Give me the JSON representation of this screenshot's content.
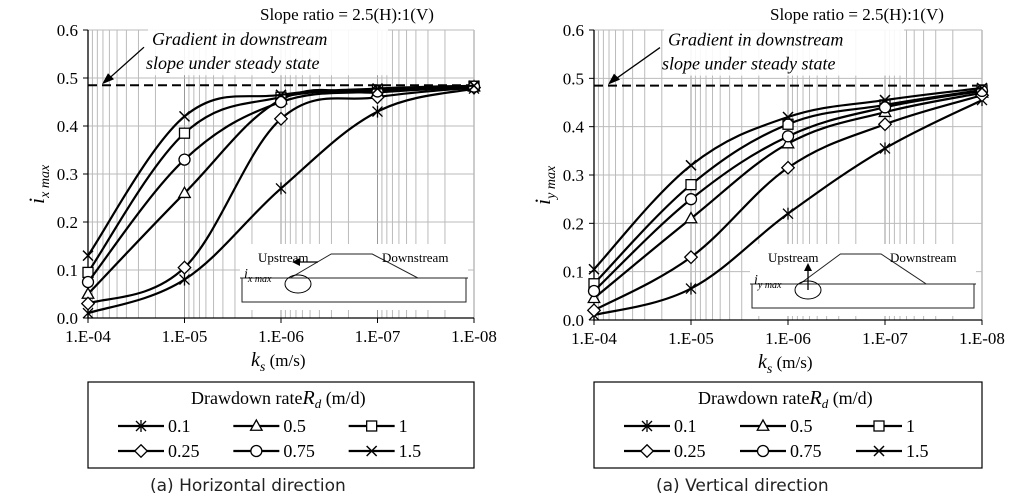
{
  "chart_data": [
    {
      "type": "line",
      "title": "Slope ratio = 2.5(H):1(V)",
      "caption": "(a) Horizontal direction",
      "ylabel_main": "i",
      "ylabel_sub": "x max",
      "xlabel_main": "k",
      "xlabel_sub": "s",
      "xlabel_unit": " (m/s)",
      "x_ticks": [
        "1.E-04",
        "1.E-05",
        "1.E-06",
        "1.E-07",
        "1.E-08"
      ],
      "x_log_exponents": [
        -4,
        -5,
        -6,
        -7,
        -8
      ],
      "y_ticks": [
        "0.0",
        "0.1",
        "0.2",
        "0.3",
        "0.4",
        "0.5",
        "0.6"
      ],
      "ylim": [
        0,
        0.6
      ],
      "x_scale": "log (decreasing)",
      "grid": "log-minor vertical",
      "steady_line": {
        "y": 0.485,
        "label_line1": "Gradient in downstream",
        "label_line2": "slope under steady state"
      },
      "inset": {
        "upstream": "Upstream",
        "downstream": "Downstream",
        "arrow_label_main": "i",
        "arrow_label_sub": "x max",
        "arrow_dir": "left"
      },
      "legend": {
        "title_main": "Drawdown rate",
        "title_var": "R",
        "title_sub": "d",
        "title_unit": " (m/d)",
        "entries": [
          "0.1",
          "0.5",
          "1",
          "0.25",
          "0.75",
          "1.5"
        ]
      },
      "series": [
        {
          "name": "0.1",
          "marker": "asterisk",
          "x": [
            "1.E-04",
            "1.E-05",
            "1.E-06",
            "1.E-07",
            "1.E-08"
          ],
          "y": [
            0.01,
            0.08,
            0.27,
            0.43,
            0.478
          ]
        },
        {
          "name": "0.5",
          "marker": "triangle",
          "x": [
            "1.E-04",
            "1.E-05",
            "1.E-06",
            "1.E-07",
            "1.E-08"
          ],
          "y": [
            0.05,
            0.26,
            0.455,
            0.47,
            0.482
          ]
        },
        {
          "name": "1",
          "marker": "square",
          "x": [
            "1.E-04",
            "1.E-05",
            "1.E-06",
            "1.E-07",
            "1.E-08"
          ],
          "y": [
            0.095,
            0.385,
            0.46,
            0.475,
            0.483
          ]
        },
        {
          "name": "0.25",
          "marker": "diamond",
          "x": [
            "1.E-04",
            "1.E-05",
            "1.E-06",
            "1.E-07",
            "1.E-08"
          ],
          "y": [
            0.03,
            0.105,
            0.415,
            0.46,
            0.48
          ]
        },
        {
          "name": "0.75",
          "marker": "circle",
          "x": [
            "1.E-04",
            "1.E-05",
            "1.E-06",
            "1.E-07",
            "1.E-08"
          ],
          "y": [
            0.075,
            0.33,
            0.45,
            0.472,
            0.482
          ]
        },
        {
          "name": "1.5",
          "marker": "x",
          "x": [
            "1.E-04",
            "1.E-05",
            "1.E-06",
            "1.E-07",
            "1.E-08"
          ],
          "y": [
            0.13,
            0.42,
            0.465,
            0.478,
            0.484
          ]
        }
      ]
    },
    {
      "type": "line",
      "title": "Slope ratio = 2.5(H):1(V)",
      "caption": "(a) Vertical direction",
      "ylabel_main": "i",
      "ylabel_sub": "y max",
      "xlabel_main": "k",
      "xlabel_sub": "s",
      "xlabel_unit": " (m/s)",
      "x_ticks": [
        "1.E-04",
        "1.E-05",
        "1.E-06",
        "1.E-07",
        "1.E-08"
      ],
      "x_log_exponents": [
        -4,
        -5,
        -6,
        -7,
        -8
      ],
      "y_ticks": [
        "0.0",
        "0.1",
        "0.2",
        "0.3",
        "0.4",
        "0.5",
        "0.6"
      ],
      "ylim": [
        0,
        0.6
      ],
      "x_scale": "log (decreasing)",
      "grid": "log-minor vertical",
      "steady_line": {
        "y": 0.485,
        "label_line1": "Gradient in downstream",
        "label_line2": "slope under steady state"
      },
      "inset": {
        "upstream": "Upstream",
        "downstream": "Downstream",
        "arrow_label_main": "i",
        "arrow_label_sub": "y max",
        "arrow_dir": "up"
      },
      "legend": {
        "title_main": "Drawdown rate",
        "title_var": "R",
        "title_sub": "d",
        "title_unit": " (m/d)",
        "entries": [
          "0.1",
          "0.5",
          "1",
          "0.25",
          "0.75",
          "1.5"
        ]
      },
      "series": [
        {
          "name": "0.1",
          "marker": "asterisk",
          "x": [
            "1.E-04",
            "1.E-05",
            "1.E-06",
            "1.E-07",
            "1.E-08"
          ],
          "y": [
            0.01,
            0.065,
            0.22,
            0.355,
            0.455
          ]
        },
        {
          "name": "0.5",
          "marker": "triangle",
          "x": [
            "1.E-04",
            "1.E-05",
            "1.E-06",
            "1.E-07",
            "1.E-08"
          ],
          "y": [
            0.045,
            0.21,
            0.365,
            0.43,
            0.47
          ]
        },
        {
          "name": "1",
          "marker": "square",
          "x": [
            "1.E-04",
            "1.E-05",
            "1.E-06",
            "1.E-07",
            "1.E-08"
          ],
          "y": [
            0.075,
            0.28,
            0.405,
            0.445,
            0.476
          ]
        },
        {
          "name": "0.25",
          "marker": "diamond",
          "x": [
            "1.E-04",
            "1.E-05",
            "1.E-06",
            "1.E-07",
            "1.E-08"
          ],
          "y": [
            0.02,
            0.13,
            0.315,
            0.405,
            0.465
          ]
        },
        {
          "name": "0.75",
          "marker": "circle",
          "x": [
            "1.E-04",
            "1.E-05",
            "1.E-06",
            "1.E-07",
            "1.E-08"
          ],
          "y": [
            0.06,
            0.25,
            0.38,
            0.44,
            0.474
          ]
        },
        {
          "name": "1.5",
          "marker": "x",
          "x": [
            "1.E-04",
            "1.E-05",
            "1.E-06",
            "1.E-07",
            "1.E-08"
          ],
          "y": [
            0.105,
            0.32,
            0.42,
            0.455,
            0.48
          ]
        }
      ]
    }
  ]
}
